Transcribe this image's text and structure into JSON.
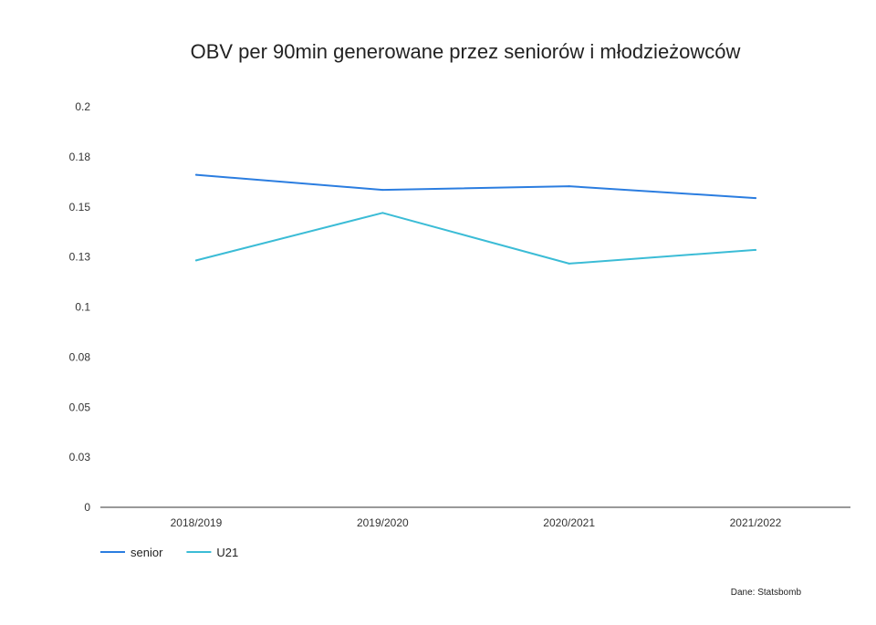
{
  "chart_data": {
    "type": "line",
    "title": "OBV per 90min generowane przez seniorów i młodzieżowców",
    "xlabel": "",
    "ylabel": "",
    "categories": [
      "2018/2019",
      "2019/2020",
      "2020/2021",
      "2021/2022"
    ],
    "series": [
      {
        "name": "senior",
        "color": "#2b7de0",
        "values": [
          0.166,
          0.1585,
          0.1603,
          0.1544
        ]
      },
      {
        "name": "U21",
        "color": "#3bbcd6",
        "values": [
          0.1233,
          0.147,
          0.1217,
          0.1285
        ]
      }
    ],
    "yticks": [
      0,
      0.025,
      0.05,
      0.075,
      0.1,
      0.125,
      0.15,
      0.175,
      0.2
    ],
    "ytick_labels": [
      "0",
      "0.03",
      "0.05",
      "0.08",
      "0.1",
      "0.13",
      "0.15",
      "0.18",
      "0.2"
    ],
    "ylim": [
      0,
      0.2
    ],
    "grid": false,
    "legend_position": "bottom-left",
    "source": "Dane: Statsbomb"
  }
}
